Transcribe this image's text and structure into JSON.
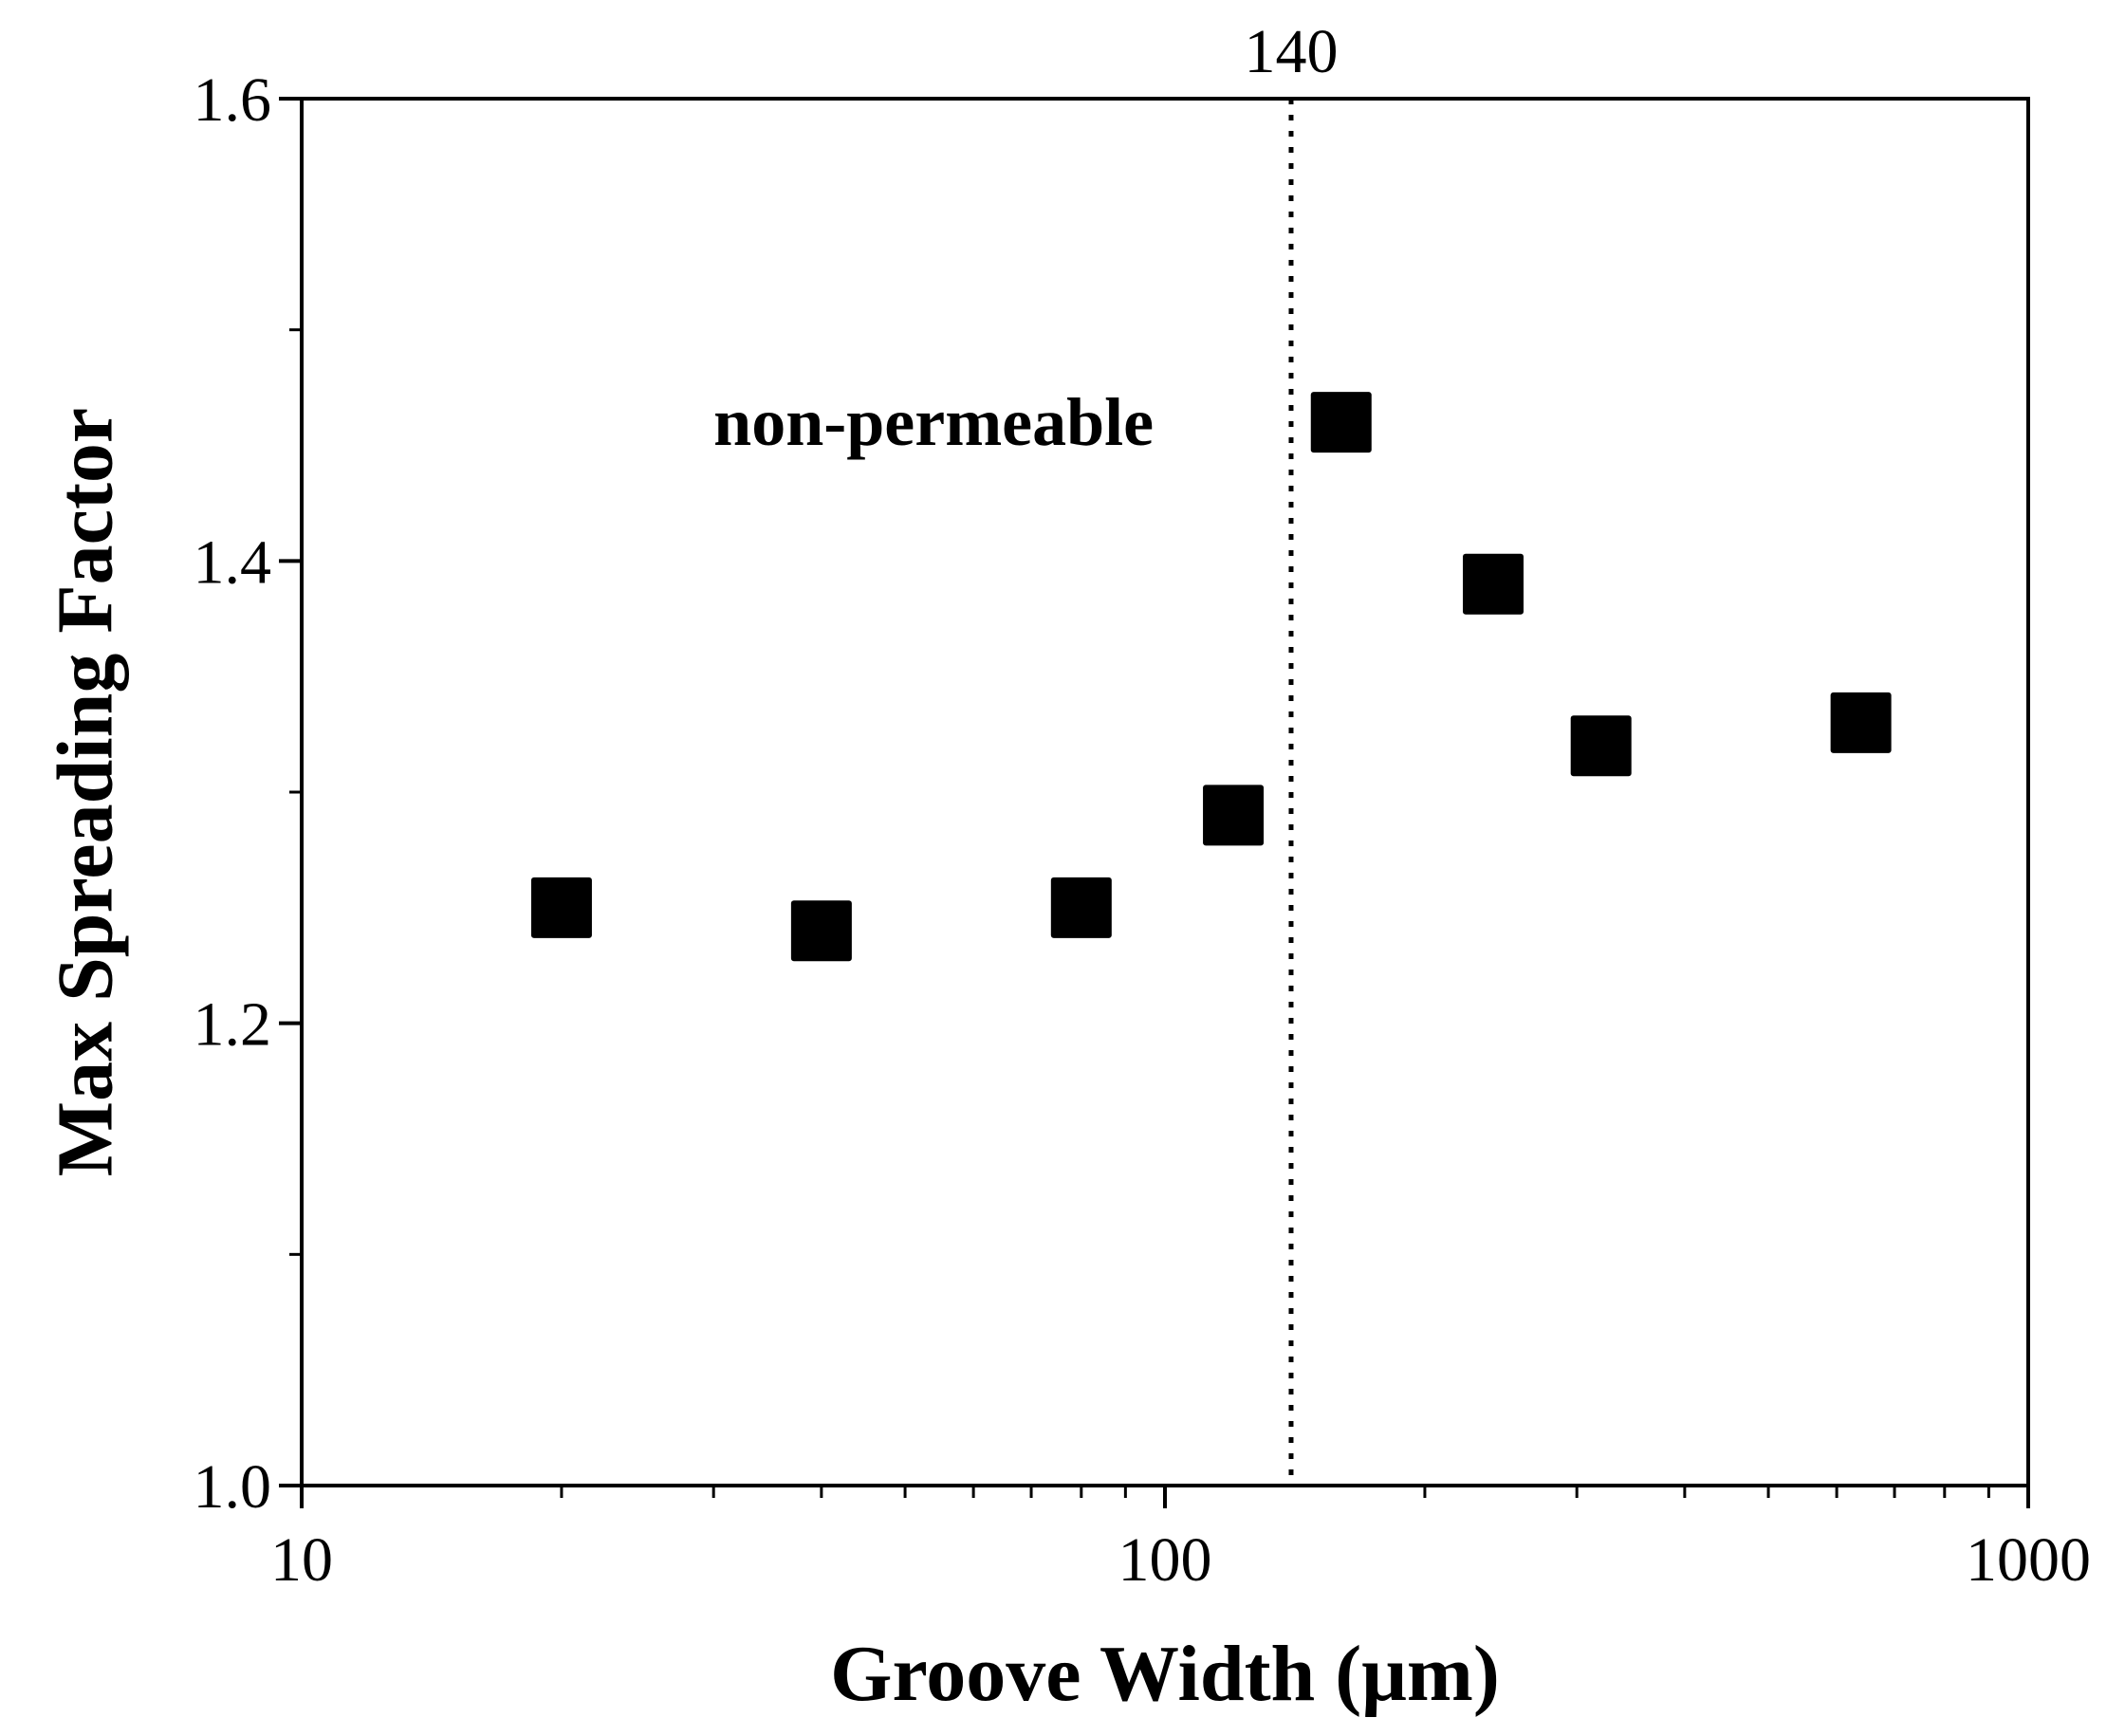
{
  "chart_data": {
    "type": "scatter",
    "xlabel": "Groove Width (μm)",
    "ylabel": "Max Spreading Factor",
    "xscale": "log",
    "xlim": [
      10,
      1000
    ],
    "ylim": [
      1.0,
      1.6
    ],
    "x_ticks": [
      10,
      100,
      1000
    ],
    "x_tick_labels": [
      "10",
      "100",
      "1000"
    ],
    "y_ticks": [
      1.0,
      1.2,
      1.4,
      1.6
    ],
    "y_tick_labels": [
      "1.0",
      "1.2",
      "1.4",
      "1.6"
    ],
    "y_minor_ticks": [
      1.1,
      1.3,
      1.5
    ],
    "grid": false,
    "marker": "square",
    "marker_color": "#000000",
    "series": [
      {
        "points": [
          {
            "x": 20,
            "y": 1.25
          },
          {
            "x": 40,
            "y": 1.24
          },
          {
            "x": 80,
            "y": 1.25
          },
          {
            "x": 120,
            "y": 1.29
          },
          {
            "x": 160,
            "y": 1.46
          },
          {
            "x": 240,
            "y": 1.39
          },
          {
            "x": 320,
            "y": 1.32
          },
          {
            "x": 640,
            "y": 1.33
          }
        ]
      }
    ],
    "reference_line": {
      "x": 140,
      "label": "140",
      "style": "dotted"
    },
    "annotations": [
      {
        "text": "non-permeable",
        "x": 30,
        "y": 1.46
      }
    ]
  }
}
